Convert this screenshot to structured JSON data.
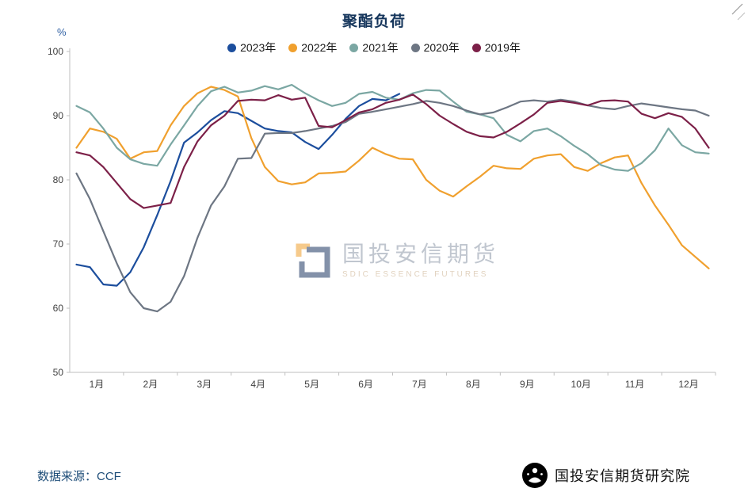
{
  "chart_data": {
    "type": "line",
    "title": "聚酯负荷",
    "y_axis_unit": "%",
    "ylim": [
      50,
      100
    ],
    "ytick_step": 10,
    "grid": false,
    "legend_position": "top",
    "x_months": [
      "1月",
      "2月",
      "3月",
      "4月",
      "5月",
      "6月",
      "7月",
      "8月",
      "9月",
      "10月",
      "11月",
      "12月"
    ],
    "points_per_month": 4,
    "series": [
      {
        "name": "2023年",
        "color": "#1c4e9d",
        "values": [
          66.8,
          66.4,
          63.7,
          63.5,
          65.6,
          69.5,
          74.5,
          79.8,
          85.8,
          87.4,
          89.3,
          90.7,
          90.4,
          89.2,
          88.0,
          87.6,
          87.4,
          85.9,
          84.8,
          87.0,
          89.5,
          91.5,
          92.6,
          92.4,
          93.4,
          null,
          null,
          null,
          null,
          null,
          null,
          null,
          null,
          null,
          null,
          null,
          null,
          null,
          null,
          null,
          null,
          null,
          null,
          null,
          null,
          null,
          null,
          null
        ]
      },
      {
        "name": "2022年",
        "color": "#f0a02e",
        "values": [
          85.0,
          88.0,
          87.5,
          86.4,
          83.3,
          84.3,
          84.5,
          88.5,
          91.5,
          93.5,
          94.5,
          94.0,
          93.0,
          86.5,
          82.0,
          79.8,
          79.3,
          79.6,
          81.0,
          81.1,
          81.3,
          83.0,
          85.0,
          84.0,
          83.3,
          83.2,
          80.0,
          78.3,
          77.4,
          79.0,
          80.5,
          82.2,
          81.8,
          81.7,
          83.3,
          83.8,
          84.0,
          82.0,
          81.4,
          82.6,
          83.5,
          83.8,
          79.5,
          76.0,
          73.0,
          69.8,
          68.0,
          66.2
        ]
      },
      {
        "name": "2021年",
        "color": "#7ba7a3",
        "values": [
          91.5,
          90.5,
          88.0,
          85.0,
          83.2,
          82.5,
          82.2,
          85.5,
          88.5,
          91.5,
          93.8,
          94.5,
          93.6,
          93.9,
          94.6,
          94.1,
          94.8,
          93.5,
          92.4,
          91.5,
          92.0,
          93.4,
          93.7,
          92.8,
          92.5,
          93.5,
          94.0,
          93.9,
          92.2,
          90.6,
          90.2,
          89.6,
          87.0,
          86.0,
          87.6,
          88.0,
          86.8,
          85.3,
          84.0,
          82.3,
          81.6,
          81.4,
          82.6,
          84.6,
          88.0,
          85.4,
          84.3,
          84.1
        ]
      },
      {
        "name": "2020年",
        "color": "#6d7683",
        "values": [
          81.0,
          77.0,
          72.0,
          67.0,
          62.5,
          60.0,
          59.5,
          61.0,
          65.0,
          71.0,
          76.0,
          79.0,
          83.3,
          83.4,
          87.2,
          87.3,
          87.3,
          87.6,
          88.0,
          88.4,
          89.0,
          90.3,
          90.6,
          91.0,
          91.4,
          91.8,
          92.3,
          92.0,
          91.5,
          90.8,
          90.2,
          90.5,
          91.3,
          92.2,
          92.4,
          92.2,
          92.5,
          92.2,
          91.6,
          91.2,
          91.0,
          91.5,
          91.9,
          91.6,
          91.3,
          91.0,
          90.8,
          90.0
        ]
      },
      {
        "name": "2019年",
        "color": "#7c2048",
        "values": [
          84.3,
          83.8,
          82.0,
          79.5,
          77.0,
          75.6,
          76.0,
          76.4,
          82.0,
          86.0,
          88.5,
          90.0,
          92.3,
          92.5,
          92.4,
          93.2,
          92.5,
          92.8,
          88.4,
          88.2,
          89.3,
          90.5,
          91.0,
          92.0,
          92.5,
          93.3,
          91.8,
          90.0,
          88.7,
          87.5,
          86.8,
          86.6,
          87.5,
          88.8,
          90.2,
          92.0,
          92.3,
          92.0,
          91.6,
          92.3,
          92.4,
          92.2,
          90.3,
          89.6,
          90.4,
          89.8,
          88.0,
          85.0
        ]
      }
    ]
  },
  "watermark": {
    "text": "国投安信期货",
    "subtext": "SDIC ESSENCE FUTURES"
  },
  "footer": {
    "source": "数据来源：CCF"
  },
  "publisher": {
    "name": "国投安信期货研究院"
  }
}
